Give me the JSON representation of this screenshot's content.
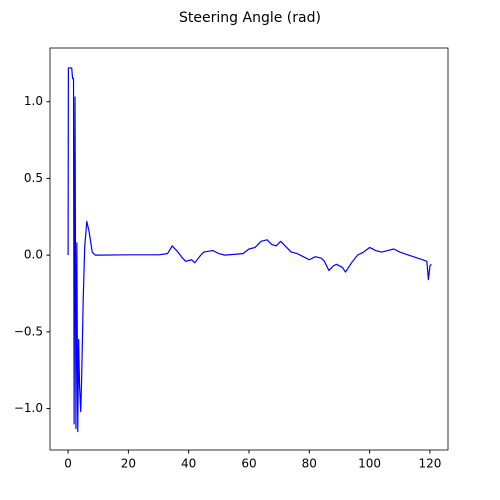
{
  "chart_data": {
    "type": "line",
    "title": "Steering Angle (rad)",
    "x": [
      0,
      0.1,
      1.2,
      1.5,
      1.8,
      2.0,
      2.3,
      2.6,
      2.9,
      3.2,
      3.5,
      3.8,
      4.2,
      4.5,
      5.0,
      5.5,
      6.2,
      7,
      8,
      9,
      10,
      20,
      30,
      33,
      34.5,
      36,
      38,
      39,
      41,
      42,
      44,
      45,
      48,
      50,
      52,
      55,
      58,
      60,
      62,
      64,
      66,
      67.5,
      69,
      70.5,
      72,
      74,
      76,
      78,
      80,
      82,
      84,
      85,
      86.5,
      88,
      89,
      91,
      92,
      94,
      96,
      98,
      100,
      102,
      104,
      106,
      108,
      110,
      113,
      116,
      119,
      119.5,
      120,
      120.5
    ],
    "series": [
      {
        "color": "#0000ff",
        "values": [
          0,
          1.22,
          1.22,
          1.15,
          1.15,
          -1.1,
          1.03,
          -1.13,
          0.08,
          -1.15,
          -0.55,
          -0.85,
          -1.02,
          -0.8,
          -0.3,
          0.05,
          0.22,
          0.15,
          0.02,
          0.0,
          0.0,
          0.002,
          0.002,
          0.01,
          0.06,
          0.03,
          -0.02,
          -0.04,
          -0.03,
          -0.05,
          0.0,
          0.02,
          0.03,
          0.01,
          0.0,
          0.005,
          0.01,
          0.04,
          0.05,
          0.09,
          0.1,
          0.07,
          0.06,
          0.09,
          0.06,
          0.02,
          0.01,
          -0.01,
          -0.03,
          -0.01,
          -0.02,
          -0.04,
          -0.1,
          -0.07,
          -0.06,
          -0.08,
          -0.11,
          -0.05,
          0.0,
          0.02,
          0.05,
          0.03,
          0.02,
          0.03,
          0.04,
          0.02,
          0.0,
          -0.02,
          -0.04,
          -0.16,
          -0.07,
          -0.06
        ]
      }
    ],
    "xlim": [
      -6,
      126
    ],
    "xticks": [
      0,
      20,
      40,
      60,
      80,
      100,
      120
    ],
    "ylim": [
      -1.27,
      1.35
    ],
    "yticks": [
      {
        "value": -1.0,
        "label": "−1.0"
      },
      {
        "value": -0.5,
        "label": "−0.5"
      },
      {
        "value": 0,
        "label": "0.0"
      },
      {
        "value": 0.5,
        "label": "0.5"
      },
      {
        "value": 1.0,
        "label": "1.0"
      }
    ],
    "grid": false
  }
}
